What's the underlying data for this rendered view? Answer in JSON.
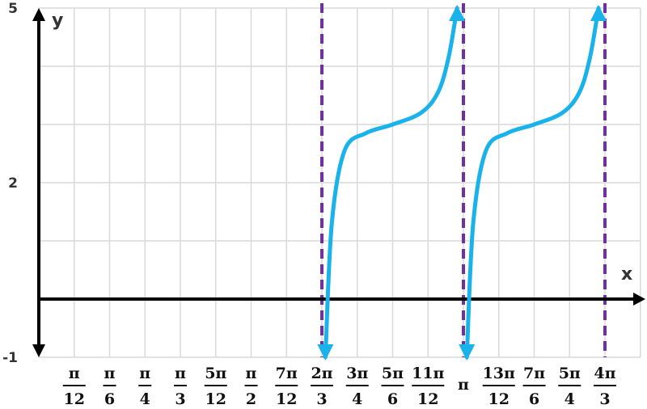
{
  "chart_data": {
    "type": "line",
    "title": "",
    "xlabel": "x",
    "ylabel": "y",
    "xlim_units_of_pi": [
      0,
      1.3333
    ],
    "ylim": [
      -1,
      5
    ],
    "grid": true,
    "y_tick_labels": [
      {
        "value": 5,
        "label": "5"
      },
      {
        "value": 2,
        "label": "2"
      },
      {
        "value": -1,
        "label": "-1"
      }
    ],
    "x_tick_labels": [
      {
        "value": 0.0833,
        "num": "π",
        "den": "12"
      },
      {
        "value": 0.1667,
        "num": "π",
        "den": "6"
      },
      {
        "value": 0.25,
        "num": "π",
        "den": "4"
      },
      {
        "value": 0.3333,
        "num": "π",
        "den": "3"
      },
      {
        "value": 0.4167,
        "num": "5π",
        "den": "12"
      },
      {
        "value": 0.5,
        "num": "π",
        "den": "2"
      },
      {
        "value": 0.5833,
        "num": "7π",
        "den": "12"
      },
      {
        "value": 0.6667,
        "num": "2π",
        "den": "3"
      },
      {
        "value": 0.75,
        "num": "3π",
        "den": "4"
      },
      {
        "value": 0.8333,
        "num": "5π",
        "den": "6"
      },
      {
        "value": 0.9167,
        "num": "11π",
        "den": "12"
      },
      {
        "value": 1.0,
        "inline": "π"
      },
      {
        "value": 1.0833,
        "num": "13π",
        "den": "12"
      },
      {
        "value": 1.1667,
        "num": "7π",
        "den": "6"
      },
      {
        "value": 1.25,
        "num": "5π",
        "den": "4"
      },
      {
        "value": 1.3333,
        "num": "4π",
        "den": "3"
      }
    ],
    "asymptotes_units_of_pi": [
      0.6667,
      1.0,
      1.3333
    ],
    "series": [
      {
        "x_units_of_pi": [
          0.675,
          0.69,
          0.72,
          0.77,
          0.8333,
          0.9,
          0.94,
          0.965,
          0.985
        ],
        "y": [
          -1.0,
          1.3,
          2.55,
          2.85,
          3.0,
          3.2,
          3.55,
          4.15,
          5.0
        ]
      },
      {
        "x_units_of_pi": [
          1.008,
          1.023,
          1.053,
          1.103,
          1.1667,
          1.233,
          1.273,
          1.298,
          1.318
        ],
        "y": [
          -1.0,
          1.3,
          2.55,
          2.85,
          3.0,
          3.2,
          3.55,
          4.15,
          5.0
        ]
      }
    ],
    "colors": {
      "curve": "#1ab2ea",
      "asymptote": "#7030a0",
      "grid": "#d9d9d9",
      "axis": "#000000"
    }
  }
}
